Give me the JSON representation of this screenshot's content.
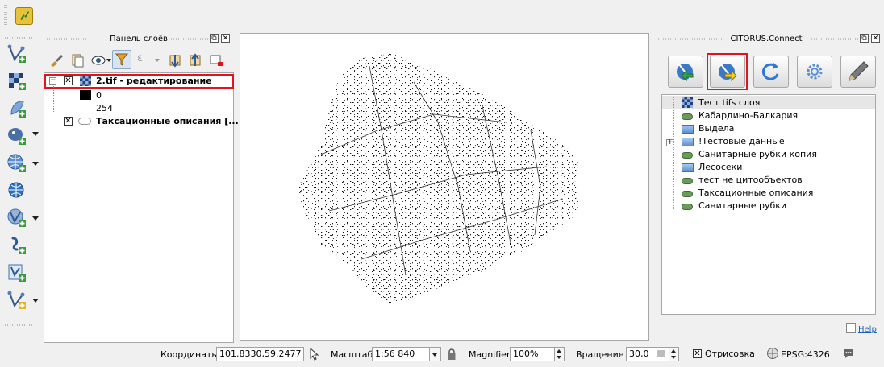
{
  "layers_panel": {
    "title": "Панель слоёв",
    "layers": [
      {
        "name": "2.tif - редактирование",
        "checked": true,
        "expanded": true,
        "legend": [
          "0",
          "254"
        ]
      },
      {
        "name": "Таксационные описания [...",
        "checked": true
      }
    ]
  },
  "citorus_panel": {
    "title": "CITORUS.Connect",
    "items": [
      {
        "label": "Тест tifs слоя",
        "icon": "raster-icon"
      },
      {
        "label": "Кабардино-Балкария",
        "icon": "vector-icon"
      },
      {
        "label": "Выдела",
        "icon": "folder-icon"
      },
      {
        "label": "!Тестовые данные",
        "icon": "folder-icon",
        "expandable": true
      },
      {
        "label": "Санитарные рубки копия",
        "icon": "vector-icon"
      },
      {
        "label": "Лесосеки",
        "icon": "folder-icon"
      },
      {
        "label": "тест не цитообъектов",
        "icon": "vector-icon"
      },
      {
        "label": "Таксационные описания",
        "icon": "vector-icon"
      },
      {
        "label": "Санитарные рубки",
        "icon": "vector-icon"
      }
    ],
    "help_link": "Help"
  },
  "status_bar": {
    "coordinates_label": "Координаты",
    "coordinates_value": "101.8330,59.2477",
    "scale_label": "Масштаб",
    "scale_value": "1:56 840",
    "magnifier_label": "Magnifier",
    "magnifier_value": "100%",
    "rotation_label": "Вращение",
    "rotation_value": "30,0",
    "render_label": "Отрисовка",
    "render_checked": true,
    "crs_label": "EPSG:4326"
  },
  "colors": {
    "highlight": "#e0141e",
    "accent_blue": "#1a5fb4",
    "vector_green": "#6a9b5a"
  }
}
